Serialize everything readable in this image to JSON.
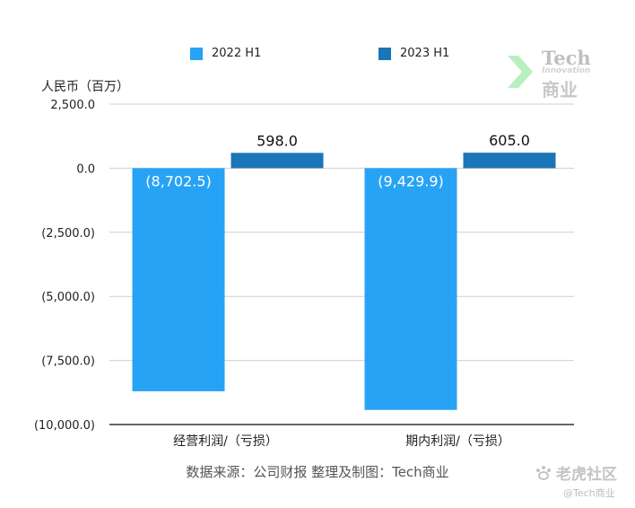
{
  "chart_data": {
    "type": "bar",
    "ylabel": "人民币（百万）",
    "categories": [
      "经营利润/（亏损）",
      "期内利润/（亏损）"
    ],
    "series": [
      {
        "name": "2022 H1",
        "color": "#27a3f5",
        "values": [
          -8702.5,
          -9429.9
        ],
        "labels": [
          "(8,702.5)",
          "(9,429.9)"
        ]
      },
      {
        "name": "2023 H1",
        "color": "#1b75b8",
        "values": [
          598.0,
          605.0
        ],
        "labels": [
          "598.0",
          "605.0"
        ]
      }
    ],
    "ylim": [
      -10000,
      2500
    ],
    "yticks": [
      2500,
      0,
      -2500,
      -5000,
      -7500,
      -10000
    ],
    "ytick_labels": [
      "2,500.0",
      "0.0",
      "(2,500.0)",
      "(5,000.0)",
      "(7,500.0)",
      "(10,000.0)"
    ],
    "grid": true,
    "legend": "top-center"
  },
  "source_text": "数据来源：公司财报 整理及制图：Tech商业",
  "logo": {
    "line1": "Tech",
    "line2": "Innovation",
    "line3": "商业",
    "arrow_color": "#7be38a"
  },
  "watermark": {
    "main": "老虎社区",
    "sub": "@Tech商业",
    "color": "#c4c4c4"
  }
}
